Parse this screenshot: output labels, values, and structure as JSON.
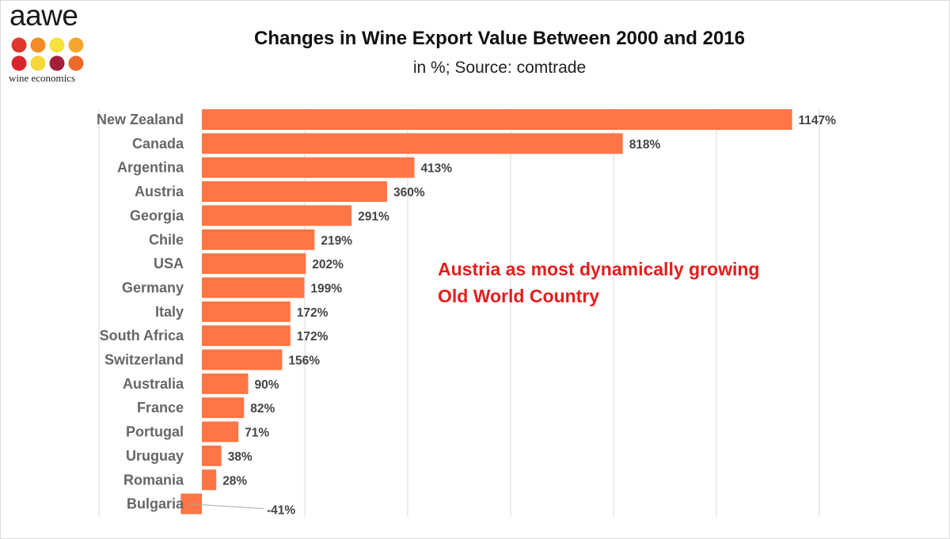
{
  "logo": {
    "word": "aawe",
    "subtitle": "wine economics",
    "dot_colors": [
      "#e0392b",
      "#f28c28",
      "#f5e23a",
      "#f4a52b",
      "#d8252b",
      "#f7d83a",
      "#a3203a",
      "#ec6a2a"
    ]
  },
  "chart_data": {
    "type": "bar",
    "orientation": "horizontal",
    "title": "Changes in Wine Export Value Between 2000 and 2016",
    "subtitle": "in %; Source: comtrade",
    "categories": [
      "New Zealand",
      "Canada",
      "Argentina",
      "Austria",
      "Georgia",
      "Chile",
      "USA",
      "Germany",
      "Italy",
      "South Africa",
      "Switzerland",
      "Australia",
      "France",
      "Portugal",
      "Uruguay",
      "Romania",
      "Bulgaria"
    ],
    "values": [
      1147,
      818,
      413,
      360,
      291,
      219,
      202,
      199,
      172,
      172,
      156,
      90,
      82,
      71,
      38,
      28,
      -41
    ],
    "value_labels": [
      "1147%",
      "818%",
      "413%",
      "360%",
      "291%",
      "219%",
      "202%",
      "199%",
      "172%",
      "172%",
      "156%",
      "90%",
      "82%",
      "71%",
      "38%",
      "28%",
      "-41%"
    ],
    "xlim": [
      -200,
      1200
    ],
    "grid": "vertical gridlines",
    "legend": "none",
    "bar_color": "#ff7545",
    "annotation": {
      "lines": [
        "Austria as most dynamically growing",
        "Old World Country"
      ],
      "color": "#e51c1c"
    }
  }
}
